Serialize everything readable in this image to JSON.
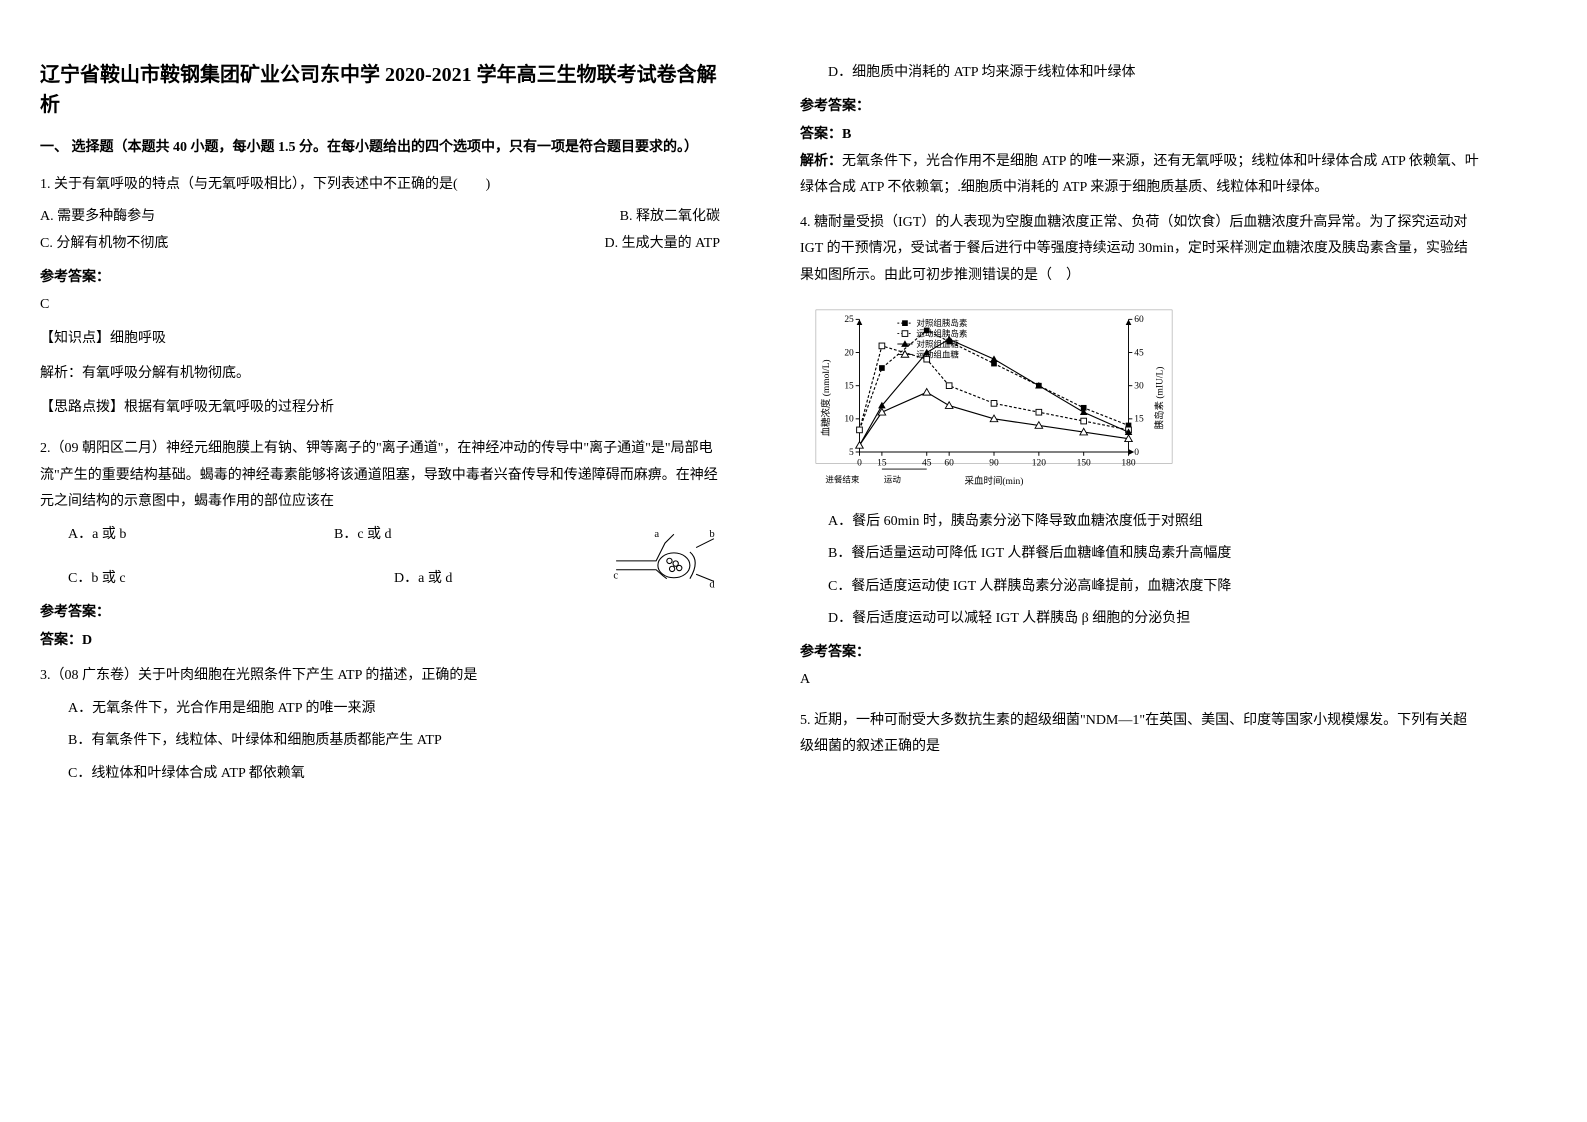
{
  "header": {
    "title": "辽宁省鞍山市鞍钢集团矿业公司东中学 2020-2021 学年高三生物联考试卷含解析",
    "section1": "一、 选择题（本题共 40 小题，每小题 1.5 分。在每小题给出的四个选项中，只有一项是符合题目要求的。）"
  },
  "q1": {
    "stem": "1. 关于有氧呼吸的特点（与无氧呼吸相比），下列表述中不正确的是(　　)",
    "A": "A. 需要多种酶参与",
    "B": "B. 释放二氧化碳",
    "C": "C. 分解有机物不彻底",
    "D": "D. 生成大量的 ATP",
    "ans_label": "参考答案：",
    "ans_value": "C",
    "note1": "【知识点】细胞呼吸",
    "note2": "解析：有氧呼吸分解有机物彻底。",
    "note3": "【思路点拨】根据有氧呼吸无氧呼吸的过程分析"
  },
  "q2": {
    "stem": "2.（09 朝阳区二月）神经元细胞膜上有钠、钾等离子的\"离子通道\"，在神经冲动的传导中\"离子通道\"是\"局部电流\"产生的重要结构基础。蝎毒的神经毒素能够将该通道阻塞，导致中毒者兴奋传导和传递障碍而麻痹。在神经元之间结构的示意图中，蝎毒作用的部位应该在",
    "A": "A．a 或 b",
    "B": "B．c 或 d",
    "C": "C．b 或 c",
    "D": "D．a 或 d",
    "ans_label": "参考答案：",
    "ans_value": "答案：D",
    "diagram": {
      "labels": {
        "a": "a",
        "b": "b",
        "c": "c",
        "d": "d"
      },
      "line_color": "#000000",
      "bg_color": "#ffffff"
    }
  },
  "q3": {
    "stem": "3.（08 广东卷）关于叶肉细胞在光照条件下产生 ATP 的描述，正确的是",
    "A": "A．无氧条件下，光合作用是细胞 ATP 的唯一来源",
    "B": "B．有氧条件下，线粒体、叶绿体和细胞质基质都能产生 ATP",
    "C": "C．线粒体和叶绿体合成 ATP 都依赖氧",
    "D": "D．细胞质中消耗的 ATP 均来源于线粒体和叶绿体",
    "ans_label": "参考答案：",
    "ans_title": "答案：B",
    "exp": "解析：无氧条件下，光合作用不是细胞 ATP 的唯一来源，还有无氧呼吸；线粒体和叶绿体合成 ATP 依赖氧、叶绿体合成 ATP 不依赖氧；.细胞质中消耗的 ATP 来源于细胞质基质、线粒体和叶绿体。"
  },
  "q4": {
    "stem": "4. 糖耐量受损（IGT）的人表现为空腹血糖浓度正常、负荷（如饮食）后血糖浓度升高异常。为了探究运动对 IGT 的干预情况，受试者于餐后进行中等强度持续运动 30min，定时采样测定血糖浓度及胰岛素含量，实验结果如图所示。由此可初步推测错误的是（　）",
    "A": "A．餐后 60min 时，胰岛素分泌下降导致血糖浓度低于对照组",
    "B": "B．餐后适量运动可降低 IGT 人群餐后血糖峰值和胰岛素升高幅度",
    "C": "C．餐后适度运动使 IGT 人群胰岛素分泌高峰提前，血糖浓度下降",
    "D": "D．餐后适度运动可以减轻 IGT 人群胰岛 β 细胞的分泌负担",
    "ans_label": "参考答案：",
    "ans_value": "A",
    "chart": {
      "type": "line",
      "x": [
        0,
        15,
        45,
        60,
        90,
        120,
        150,
        180
      ],
      "xlabel": "采血时间(min)",
      "xlabel_left": "进餐结束",
      "xlabel_exercise": "运动",
      "y1_label": "血糖浓度 (mmol/L)",
      "y1_ticks": [
        5,
        10,
        15,
        20,
        25
      ],
      "y2_label": "胰岛素 (mIU/L)",
      "y2_ticks": [
        0,
        15,
        30,
        45,
        60
      ],
      "legend": [
        "对照组胰岛素",
        "运动组胰岛素",
        "对照组血糖",
        "运动组血糖"
      ],
      "legend_markers": [
        "square-filled",
        "square-open",
        "triangle-filled",
        "triangle-open"
      ],
      "series": {
        "ctrl_insulin": {
          "color": "#000000",
          "marker": "square-filled",
          "y": [
            10,
            38,
            55,
            50,
            40,
            30,
            20,
            12
          ]
        },
        "ex_insulin": {
          "color": "#000000",
          "marker": "square-open",
          "y": [
            10,
            48,
            42,
            30,
            22,
            18,
            14,
            10
          ]
        },
        "ctrl_glucose": {
          "color": "#000000",
          "marker": "triangle-filled",
          "y": [
            6,
            12,
            20,
            22,
            19,
            15,
            11,
            8
          ]
        },
        "ex_glucose": {
          "color": "#000000",
          "marker": "triangle-open",
          "y": [
            6,
            11,
            14,
            12,
            10,
            9,
            8,
            7
          ]
        }
      },
      "xlim": [
        0,
        180
      ],
      "y1_lim": [
        5,
        25
      ],
      "y2_lim": [
        0,
        60
      ],
      "background_color": "#ffffff",
      "axis_color": "#000000",
      "fontsize": 10
    }
  },
  "q5": {
    "stem": "5. 近期，一种可耐受大多数抗生素的超级细菌\"NDM—1\"在英国、美国、印度等国家小规模爆发。下列有关超级细菌的叙述正确的是"
  }
}
